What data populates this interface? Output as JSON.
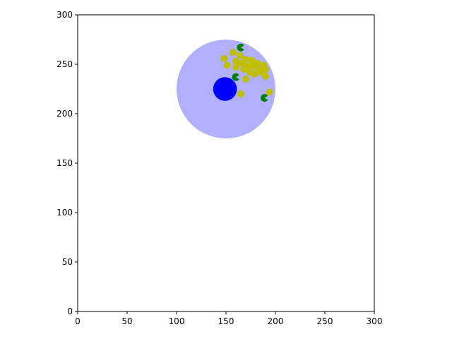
{
  "chart_data": {
    "type": "scatter",
    "title": "",
    "xlabel": "",
    "ylabel": "",
    "xlim": [
      0,
      300
    ],
    "ylim": [
      0,
      300
    ],
    "xticks": [
      0,
      50,
      100,
      150,
      200,
      250,
      300
    ],
    "yticks": [
      0,
      50,
      100,
      150,
      200,
      250,
      300
    ],
    "grid": false,
    "legend": "none",
    "aspect": "equal",
    "regions": [
      {
        "center": [
          150,
          225
        ],
        "radius": 50,
        "color": "#b0b0ff"
      }
    ],
    "agent": {
      "center": [
        149,
        225
      ],
      "radius": 12,
      "color": "#0000ff"
    },
    "series": [
      {
        "marker": "circle",
        "color": "#bfbf00",
        "points": [
          [
            148,
            256
          ],
          [
            151,
            249
          ],
          [
            157,
            262
          ],
          [
            160,
            253
          ],
          [
            160,
            247
          ],
          [
            164,
            259
          ],
          [
            166,
            251
          ],
          [
            168,
            245
          ],
          [
            170,
            255
          ],
          [
            172,
            248
          ],
          [
            170,
            235
          ],
          [
            174,
            242
          ],
          [
            176,
            254
          ],
          [
            178,
            248
          ],
          [
            179,
            240
          ],
          [
            182,
            251
          ],
          [
            183,
            244
          ],
          [
            186,
            242
          ],
          [
            188,
            249
          ],
          [
            190,
            245
          ],
          [
            190,
            238
          ],
          [
            194,
            222
          ],
          [
            165,
            220
          ]
        ]
      },
      {
        "marker": "pacman",
        "color": "#007f00",
        "points": [
          [
            165,
            267
          ],
          [
            160,
            237
          ],
          [
            189,
            216
          ]
        ]
      }
    ]
  }
}
